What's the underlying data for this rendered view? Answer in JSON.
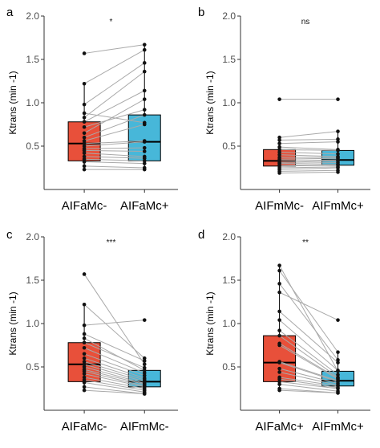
{
  "colors": {
    "red": "#e8503a",
    "blue": "#47b7d9",
    "line": "#a9a9a9",
    "point": "#111111",
    "axis": "#333333"
  },
  "chart_data": [
    {
      "panel": "a",
      "type": "box",
      "signif": "*",
      "ylabel": "Ktrans (min -1)",
      "ylim": [
        0.0,
        2.0
      ],
      "yticks": [
        0.5,
        1.0,
        1.5,
        2.0
      ],
      "ytick_labels": [
        "0.5",
        "1.0",
        "1.5",
        "2.0"
      ],
      "categories": [
        "AIFaMc-",
        "AIFaMc+"
      ],
      "box_colors": [
        "#e8503a",
        "#47b7d9"
      ],
      "boxes": [
        {
          "q1": 0.33,
          "median": 0.53,
          "q3": 0.78,
          "whisker_low": 0.23,
          "whisker_high": 1.22,
          "outliers": [
            1.57
          ]
        },
        {
          "q1": 0.33,
          "median": 0.55,
          "q3": 0.86,
          "whisker_low": 0.23,
          "whisker_high": 1.66,
          "outliers": []
        }
      ],
      "pairs": [
        [
          1.57,
          1.67
        ],
        [
          1.22,
          1.61
        ],
        [
          0.98,
          1.46
        ],
        [
          0.88,
          0.77
        ],
        [
          0.83,
          1.36
        ],
        [
          0.78,
          1.14
        ],
        [
          0.72,
          0.92
        ],
        [
          0.65,
          1.04
        ],
        [
          0.6,
          0.86
        ],
        [
          0.56,
          0.75
        ],
        [
          0.53,
          0.56
        ],
        [
          0.5,
          0.55
        ],
        [
          0.47,
          0.48
        ],
        [
          0.45,
          0.44
        ],
        [
          0.42,
          0.38
        ],
        [
          0.38,
          0.36
        ],
        [
          0.35,
          0.33
        ],
        [
          0.32,
          0.3
        ],
        [
          0.27,
          0.25
        ],
        [
          0.23,
          0.23
        ]
      ]
    },
    {
      "panel": "b",
      "type": "box",
      "signif": "ns",
      "ylabel": "Ktrans (min -1)",
      "ylim": [
        0.0,
        2.0
      ],
      "yticks": [
        0.5,
        1.0,
        1.5,
        2.0
      ],
      "ytick_labels": [
        "0.5",
        "1.0",
        "1.5",
        "2.0"
      ],
      "categories": [
        "AIFmMc-",
        "AIFmMc+"
      ],
      "box_colors": [
        "#e8503a",
        "#47b7d9"
      ],
      "boxes": [
        {
          "q1": 0.27,
          "median": 0.33,
          "q3": 0.46,
          "whisker_low": 0.19,
          "whisker_high": 0.6,
          "outliers": [
            1.04
          ]
        },
        {
          "q1": 0.28,
          "median": 0.34,
          "q3": 0.45,
          "whisker_low": 0.2,
          "whisker_high": 0.67,
          "outliers": [
            1.04
          ]
        }
      ],
      "pairs": [
        [
          1.04,
          1.04
        ],
        [
          0.6,
          0.67
        ],
        [
          0.57,
          0.58
        ],
        [
          0.53,
          0.55
        ],
        [
          0.49,
          0.46
        ],
        [
          0.46,
          0.45
        ],
        [
          0.43,
          0.41
        ],
        [
          0.4,
          0.38
        ],
        [
          0.37,
          0.37
        ],
        [
          0.35,
          0.36
        ],
        [
          0.33,
          0.34
        ],
        [
          0.31,
          0.33
        ],
        [
          0.3,
          0.31
        ],
        [
          0.28,
          0.29
        ],
        [
          0.27,
          0.28
        ],
        [
          0.25,
          0.26
        ],
        [
          0.23,
          0.25
        ],
        [
          0.21,
          0.22
        ],
        [
          0.19,
          0.2
        ]
      ]
    },
    {
      "panel": "c",
      "type": "box",
      "signif": "***",
      "ylabel": "Ktrans (min -1)",
      "ylim": [
        0.0,
        2.0
      ],
      "yticks": [
        0.5,
        1.0,
        1.5,
        2.0
      ],
      "ytick_labels": [
        "0.5",
        "1.0",
        "1.5",
        "2.0"
      ],
      "categories": [
        "AIFaMc-",
        "AIFmMc-"
      ],
      "box_colors": [
        "#e8503a",
        "#47b7d9"
      ],
      "boxes": [
        {
          "q1": 0.33,
          "median": 0.53,
          "q3": 0.78,
          "whisker_low": 0.23,
          "whisker_high": 1.22,
          "outliers": [
            1.57
          ]
        },
        {
          "q1": 0.27,
          "median": 0.33,
          "q3": 0.46,
          "whisker_low": 0.19,
          "whisker_high": 0.6,
          "outliers": [
            1.04
          ]
        }
      ],
      "pairs": [
        [
          1.57,
          0.53
        ],
        [
          1.22,
          0.6
        ],
        [
          0.98,
          1.04
        ],
        [
          0.88,
          0.57
        ],
        [
          0.83,
          0.46
        ],
        [
          0.78,
          0.49
        ],
        [
          0.72,
          0.43
        ],
        [
          0.65,
          0.4
        ],
        [
          0.6,
          0.37
        ],
        [
          0.56,
          0.35
        ],
        [
          0.53,
          0.33
        ],
        [
          0.5,
          0.31
        ],
        [
          0.47,
          0.3
        ],
        [
          0.45,
          0.28
        ],
        [
          0.42,
          0.27
        ],
        [
          0.38,
          0.25
        ],
        [
          0.35,
          0.23
        ],
        [
          0.32,
          0.21
        ],
        [
          0.27,
          0.19
        ],
        [
          0.23,
          0.19
        ]
      ]
    },
    {
      "panel": "d",
      "type": "box",
      "signif": "**",
      "ylabel": "Ktrans (min -1)",
      "ylim": [
        0.0,
        2.0
      ],
      "yticks": [
        0.5,
        1.0,
        1.5,
        2.0
      ],
      "ytick_labels": [
        "0.5",
        "1.0",
        "1.5",
        "2.0"
      ],
      "categories": [
        "AIFaMc+",
        "AIFmMc+"
      ],
      "box_colors": [
        "#e8503a",
        "#47b7d9"
      ],
      "boxes": [
        {
          "q1": 0.33,
          "median": 0.55,
          "q3": 0.86,
          "whisker_low": 0.23,
          "whisker_high": 1.66,
          "outliers": []
        },
        {
          "q1": 0.28,
          "median": 0.34,
          "q3": 0.45,
          "whisker_low": 0.2,
          "whisker_high": 0.67,
          "outliers": [
            1.04
          ]
        }
      ],
      "pairs": [
        [
          1.67,
          0.45
        ],
        [
          1.61,
          0.67
        ],
        [
          1.46,
          0.58
        ],
        [
          1.36,
          1.04
        ],
        [
          1.14,
          0.55
        ],
        [
          1.04,
          0.46
        ],
        [
          0.92,
          0.41
        ],
        [
          0.86,
          0.38
        ],
        [
          0.77,
          0.37
        ],
        [
          0.75,
          0.36
        ],
        [
          0.56,
          0.34
        ],
        [
          0.55,
          0.33
        ],
        [
          0.48,
          0.31
        ],
        [
          0.44,
          0.29
        ],
        [
          0.38,
          0.28
        ],
        [
          0.36,
          0.26
        ],
        [
          0.33,
          0.25
        ],
        [
          0.3,
          0.22
        ],
        [
          0.25,
          0.2
        ],
        [
          0.23,
          0.2
        ]
      ]
    }
  ]
}
